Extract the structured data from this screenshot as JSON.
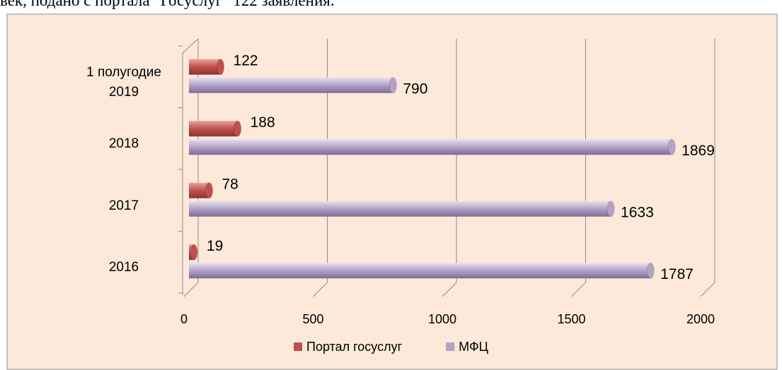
{
  "caption": "век, подано с портала \"Госуслуг\" 122 заявления.",
  "chart_data": {
    "type": "bar",
    "orientation": "horizontal",
    "categories": [
      "2016",
      "2017",
      "2018",
      "1 полугодие 2019"
    ],
    "series": [
      {
        "name": "Портал госуслуг",
        "color": "#c0504d",
        "values": [
          19,
          78,
          188,
          122
        ]
      },
      {
        "name": "МФЦ",
        "color": "#b3a2c7",
        "values": [
          1787,
          1633,
          1869,
          790
        ]
      }
    ],
    "xlim": [
      0,
      2000
    ],
    "xticks": [
      0,
      500,
      1000,
      1500,
      2000
    ],
    "grid": true,
    "legend": "bottom"
  }
}
